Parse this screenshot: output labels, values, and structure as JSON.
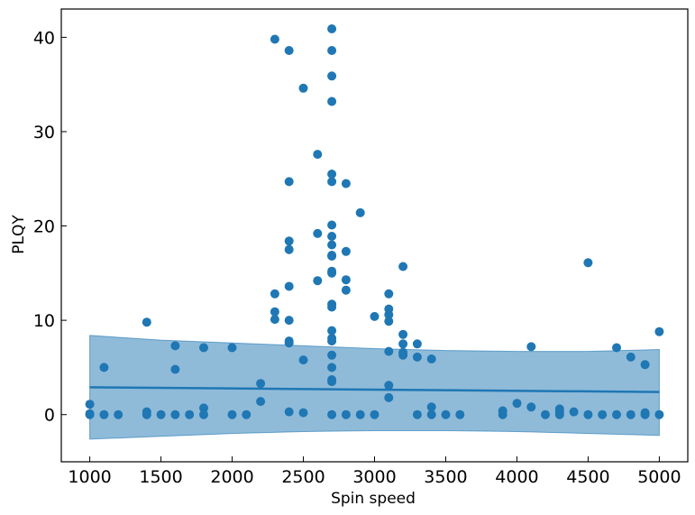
{
  "chart_data": {
    "type": "scatter",
    "title": "",
    "xlabel": "Spin speed",
    "ylabel": "PLQY",
    "xlim": [
      800,
      5200
    ],
    "ylim": [
      -5,
      43
    ],
    "xticks": [
      1000,
      1500,
      2000,
      2500,
      3000,
      3500,
      4000,
      4500,
      5000
    ],
    "yticks": [
      0,
      10,
      20,
      30,
      40
    ],
    "grid": false,
    "colors": {
      "points": "#1f77b4",
      "line": "#1f77b4",
      "band": "#1f77b4"
    },
    "points": [
      [
        1000,
        1.1
      ],
      [
        1000,
        0.1
      ],
      [
        1000,
        0.0
      ],
      [
        1100,
        5.0
      ],
      [
        1100,
        0.0
      ],
      [
        1200,
        0.0
      ],
      [
        1400,
        9.8
      ],
      [
        1400,
        0.3
      ],
      [
        1400,
        0.0
      ],
      [
        1500,
        0.0
      ],
      [
        1600,
        7.3
      ],
      [
        1600,
        4.8
      ],
      [
        1600,
        0.0
      ],
      [
        1700,
        0.0
      ],
      [
        1800,
        7.1
      ],
      [
        1800,
        0.7
      ],
      [
        1800,
        0.0
      ],
      [
        2000,
        7.1
      ],
      [
        2000,
        0.0
      ],
      [
        2100,
        0.0
      ],
      [
        2200,
        3.3
      ],
      [
        2200,
        1.4
      ],
      [
        2300,
        39.8
      ],
      [
        2300,
        12.8
      ],
      [
        2300,
        10.9
      ],
      [
        2300,
        10.1
      ],
      [
        2400,
        38.6
      ],
      [
        2400,
        24.7
      ],
      [
        2400,
        18.4
      ],
      [
        2400,
        17.5
      ],
      [
        2400,
        13.6
      ],
      [
        2400,
        10.0
      ],
      [
        2400,
        7.8
      ],
      [
        2400,
        7.6
      ],
      [
        2400,
        0.3
      ],
      [
        2500,
        34.6
      ],
      [
        2500,
        5.8
      ],
      [
        2500,
        0.2
      ],
      [
        2600,
        27.6
      ],
      [
        2600,
        19.2
      ],
      [
        2600,
        14.2
      ],
      [
        2700,
        40.9
      ],
      [
        2700,
        38.6
      ],
      [
        2700,
        35.9
      ],
      [
        2700,
        33.2
      ],
      [
        2700,
        25.5
      ],
      [
        2700,
        24.7
      ],
      [
        2700,
        20.1
      ],
      [
        2700,
        18.9
      ],
      [
        2700,
        18.0
      ],
      [
        2700,
        16.9
      ],
      [
        2700,
        16.8
      ],
      [
        2700,
        15.2
      ],
      [
        2700,
        15.0
      ],
      [
        2700,
        11.7
      ],
      [
        2700,
        11.4
      ],
      [
        2700,
        8.9
      ],
      [
        2700,
        8.1
      ],
      [
        2700,
        7.8
      ],
      [
        2700,
        6.3
      ],
      [
        2700,
        5.0
      ],
      [
        2700,
        3.7
      ],
      [
        2700,
        3.5
      ],
      [
        2700,
        0.0
      ],
      [
        2800,
        24.5
      ],
      [
        2800,
        17.3
      ],
      [
        2800,
        14.3
      ],
      [
        2800,
        13.2
      ],
      [
        2800,
        0.0
      ],
      [
        2900,
        21.4
      ],
      [
        2900,
        0.0
      ],
      [
        3000,
        10.4
      ],
      [
        3000,
        0.0
      ],
      [
        3100,
        12.8
      ],
      [
        3100,
        11.2
      ],
      [
        3100,
        10.6
      ],
      [
        3100,
        9.9
      ],
      [
        3100,
        6.7
      ],
      [
        3100,
        3.1
      ],
      [
        3100,
        1.8
      ],
      [
        3200,
        15.7
      ],
      [
        3200,
        8.5
      ],
      [
        3200,
        7.5
      ],
      [
        3200,
        6.6
      ],
      [
        3200,
        6.3
      ],
      [
        3300,
        7.5
      ],
      [
        3300,
        6.1
      ],
      [
        3300,
        0.0
      ],
      [
        3400,
        5.9
      ],
      [
        3400,
        0.8
      ],
      [
        3400,
        0.0
      ],
      [
        3500,
        0.0
      ],
      [
        3600,
        0.0
      ],
      [
        3900,
        0.4
      ],
      [
        3900,
        0.0
      ],
      [
        4000,
        1.2
      ],
      [
        4100,
        7.2
      ],
      [
        4100,
        0.8
      ],
      [
        4200,
        0.0
      ],
      [
        4300,
        0.6
      ],
      [
        4300,
        0.3
      ],
      [
        4300,
        0.0
      ],
      [
        4400,
        0.3
      ],
      [
        4500,
        16.1
      ],
      [
        4500,
        0.0
      ],
      [
        4600,
        0.0
      ],
      [
        4700,
        7.1
      ],
      [
        4700,
        0.0
      ],
      [
        4800,
        6.1
      ],
      [
        4800,
        0.0
      ],
      [
        4900,
        5.3
      ],
      [
        4900,
        0.2
      ],
      [
        4900,
        0.0
      ],
      [
        5000,
        8.8
      ],
      [
        5000,
        0.0
      ]
    ],
    "regression_line": {
      "x": [
        1000,
        5000
      ],
      "y": [
        2.9,
        2.4
      ]
    },
    "confidence_band": {
      "x": [
        1000,
        1500,
        2000,
        2500,
        3000,
        3500,
        4000,
        4500,
        5000
      ],
      "upper": [
        8.4,
        7.9,
        7.6,
        7.3,
        7.0,
        6.8,
        6.7,
        6.7,
        6.9
      ],
      "lower": [
        -2.6,
        -2.3,
        -2.0,
        -1.8,
        -1.7,
        -1.7,
        -1.8,
        -2.0,
        -2.2
      ]
    }
  }
}
